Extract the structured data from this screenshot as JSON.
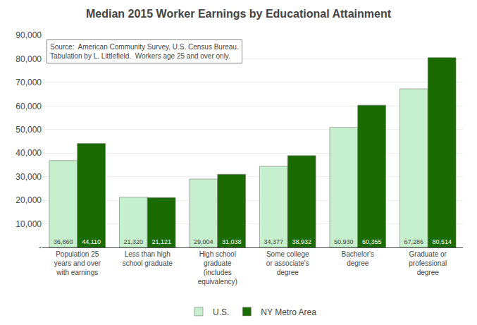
{
  "chart_data": {
    "type": "bar",
    "title": "Median 2015 Worker Earnings by Educational Attainment",
    "annotations": [
      "Source:  American Community Survey, U.S. Census Bureau.\nTabulation by L. Littlefield.  Workers age 25 and over only."
    ],
    "categories": [
      "Population 25\nyears and over\nwith earnings",
      "Less than high\nschool graduate",
      "High school\ngraduate\n(includes\nequivalency)",
      "Some college\nor associate's\ndegree",
      "Bachelor's\ndegree",
      "Graduate or\nprofessional\ndegree"
    ],
    "series": [
      {
        "name": "U.S.",
        "color": "#c6efce",
        "values": [
          36860,
          21320,
          29004,
          34377,
          50930,
          67286
        ],
        "value_labels": [
          "36,860",
          "21,320",
          "29,004",
          "34,377",
          "50,930",
          "67,286"
        ]
      },
      {
        "name": "NY Metro Area",
        "color": "#1a6b00",
        "values": [
          44110,
          21121,
          31038,
          38932,
          60355,
          80514
        ],
        "value_labels": [
          "44,110",
          "21,121",
          "31,038",
          "38,932",
          "60,355",
          "80,514"
        ]
      }
    ],
    "ylim": [
      0,
      90000
    ],
    "yticks": [
      {
        "value": 0,
        "label": "-"
      },
      {
        "value": 10000,
        "label": "10,000"
      },
      {
        "value": 20000,
        "label": "20,000"
      },
      {
        "value": 30000,
        "label": "30,000"
      },
      {
        "value": 40000,
        "label": "40,000"
      },
      {
        "value": 50000,
        "label": "50,000"
      },
      {
        "value": 60000,
        "label": "60,000"
      },
      {
        "value": 70000,
        "label": "70,000"
      },
      {
        "value": 80000,
        "label": "80,000"
      },
      {
        "value": 90000,
        "label": "90,000"
      }
    ],
    "grid": true,
    "legend": "bottom",
    "data_labels": true
  }
}
